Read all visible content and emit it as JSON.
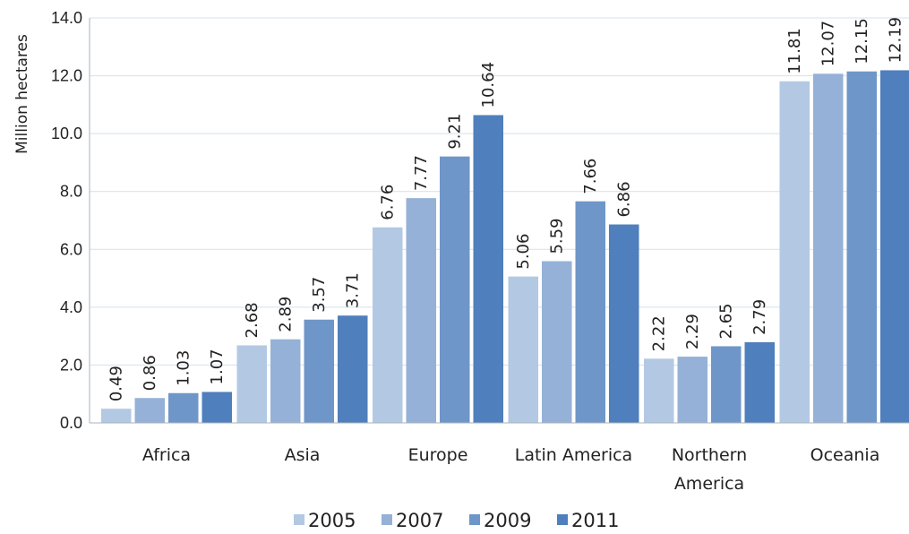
{
  "chart_data": {
    "type": "bar",
    "title": "",
    "xlabel": "",
    "ylabel": "Million hectares",
    "ylim": [
      0,
      14
    ],
    "yticks": [
      "0.0",
      "2.0",
      "4.0",
      "6.0",
      "8.0",
      "10.0",
      "12.0",
      "14.0"
    ],
    "grid": true,
    "legend_position": "bottom",
    "categories": [
      [
        "Africa"
      ],
      [
        "Asia"
      ],
      [
        "Europe"
      ],
      [
        "Latin America"
      ],
      [
        "Northern",
        "America"
      ],
      [
        "Oceania"
      ]
    ],
    "series": [
      {
        "name": "2005",
        "color": "#b3c8e3",
        "values": [
          0.49,
          2.68,
          6.76,
          5.06,
          2.22,
          11.81
        ],
        "labels": [
          "0.49",
          "2.68",
          "6.76",
          "5.06",
          "2.22",
          "11.81"
        ]
      },
      {
        "name": "2007",
        "color": "#95b1d7",
        "values": [
          0.86,
          2.89,
          7.77,
          5.59,
          2.29,
          12.07
        ],
        "labels": [
          "0.86",
          "2.89",
          "7.77",
          "5.59",
          "2.29",
          "12.07"
        ]
      },
      {
        "name": "2009",
        "color": "#6f96c9",
        "values": [
          1.03,
          3.57,
          9.21,
          7.66,
          2.65,
          12.15
        ],
        "labels": [
          "1.03",
          "3.57",
          "9.21",
          "7.66",
          "2.65",
          "12.15"
        ]
      },
      {
        "name": "2011",
        "color": "#4f7fbc",
        "values": [
          1.07,
          3.71,
          10.64,
          6.86,
          2.79,
          12.19
        ],
        "labels": [
          "1.07",
          "3.71",
          "10.64",
          "6.86",
          "2.79",
          "12.19"
        ]
      }
    ]
  }
}
